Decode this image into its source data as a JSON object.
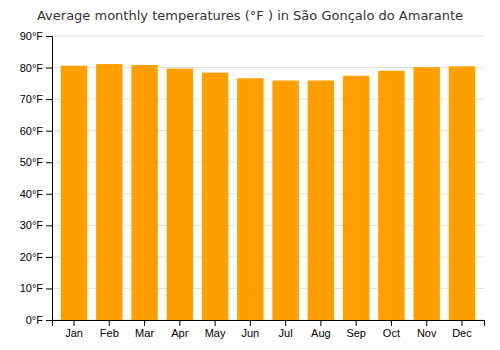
{
  "chart_data": {
    "type": "bar",
    "title": "Average monthly temperatures (°F ) in São Gonçalo do Amarante",
    "categories": [
      "Jan",
      "Feb",
      "Mar",
      "Apr",
      "May",
      "Jun",
      "Jul",
      "Aug",
      "Sep",
      "Oct",
      "Nov",
      "Dec"
    ],
    "values": [
      80.6,
      81.1,
      80.8,
      79.7,
      78.4,
      76.6,
      75.9,
      75.9,
      77.4,
      79.0,
      80.1,
      80.4
    ],
    "color": "#FFA000",
    "ylim": [
      0,
      90
    ],
    "yticks": [
      {
        "value": 0,
        "label": "0°F"
      },
      {
        "value": 10,
        "label": "10°F"
      },
      {
        "value": 20,
        "label": "20°F"
      },
      {
        "value": 30,
        "label": "30°F"
      },
      {
        "value": 40,
        "label": "40°F"
      },
      {
        "value": 50,
        "label": "50°F"
      },
      {
        "value": 60,
        "label": "60°F"
      },
      {
        "value": 70,
        "label": "70°F"
      },
      {
        "value": 80,
        "label": "80°F"
      },
      {
        "value": 90,
        "label": "90°F"
      }
    ],
    "grid": true
  }
}
